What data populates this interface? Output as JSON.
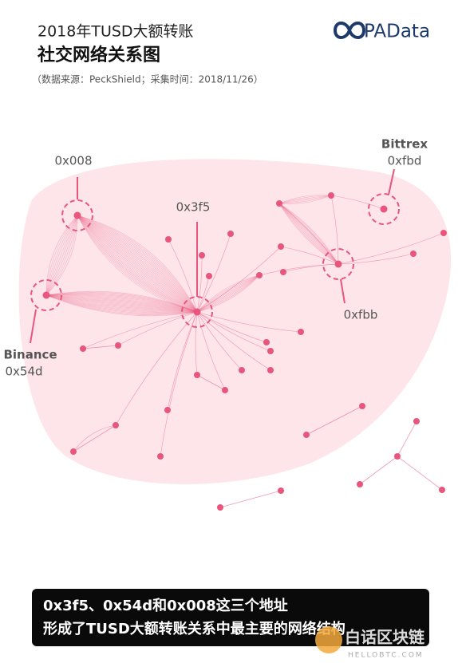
{
  "header": {
    "title": "2018年TUSD大额转账",
    "subtitle": "社交网络关系图",
    "source": "（数据来源：PeckShield；采集时间：2018/11/26）",
    "brand": "PAData"
  },
  "nodes": [
    {
      "label": "0x008"
    },
    {
      "label": "0x3f5"
    },
    {
      "label": "Bittrex",
      "address": "0xfbd"
    },
    {
      "label": "0xfbb"
    },
    {
      "label": "Binance",
      "address": "0x54d"
    }
  ],
  "caption": {
    "lines": [
      "0x3f5、0x54d和0x008这三个地址",
      "形成了TUSD大额转账关系中最主要的网络结构"
    ]
  },
  "watermark": {
    "name": "白话区块链",
    "site": "HELLOBTC.COM"
  }
}
